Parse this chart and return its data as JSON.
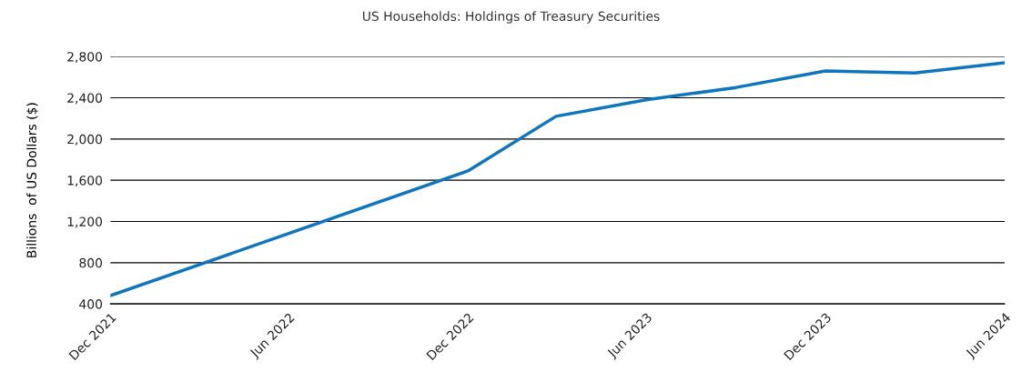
{
  "chart_data": {
    "type": "line",
    "title": "US Households: Holdings of Treasury Securities",
    "ylabel": "Billions  of US Dollars ($)",
    "x": [
      "2021-12",
      "2022-12",
      "2023-03",
      "2023-06",
      "2023-09",
      "2023-12",
      "2024-03",
      "2024-06"
    ],
    "series": [
      {
        "color": "#0f75bc",
        "values": [
          480,
          1690,
          2220,
          2380,
          2500,
          2660,
          2640,
          2740
        ]
      }
    ],
    "xlim": [
      "2021-12",
      "2024-06"
    ],
    "xticks": [
      {
        "value": "2021-12",
        "label": "Dec 2021"
      },
      {
        "value": "2022-06",
        "label": "Jun 2022"
      },
      {
        "value": "2022-12",
        "label": "Dec 2022"
      },
      {
        "value": "2023-06",
        "label": "Jun 2023"
      },
      {
        "value": "2023-12",
        "label": "Dec 2023"
      },
      {
        "value": "2024-06",
        "label": "Jun 2024"
      }
    ],
    "ylim": [
      400,
      2800
    ],
    "yticks": [
      {
        "value": 400,
        "label": "400"
      },
      {
        "value": 800,
        "label": "800"
      },
      {
        "value": 1200,
        "label": "1,200"
      },
      {
        "value": 1600,
        "label": "1,600"
      },
      {
        "value": 2000,
        "label": "2,000"
      },
      {
        "value": 2400,
        "label": "2,400"
      },
      {
        "value": 2800,
        "label": "2,800"
      }
    ],
    "grid": "y",
    "marker": "none",
    "line_style": "solid"
  }
}
